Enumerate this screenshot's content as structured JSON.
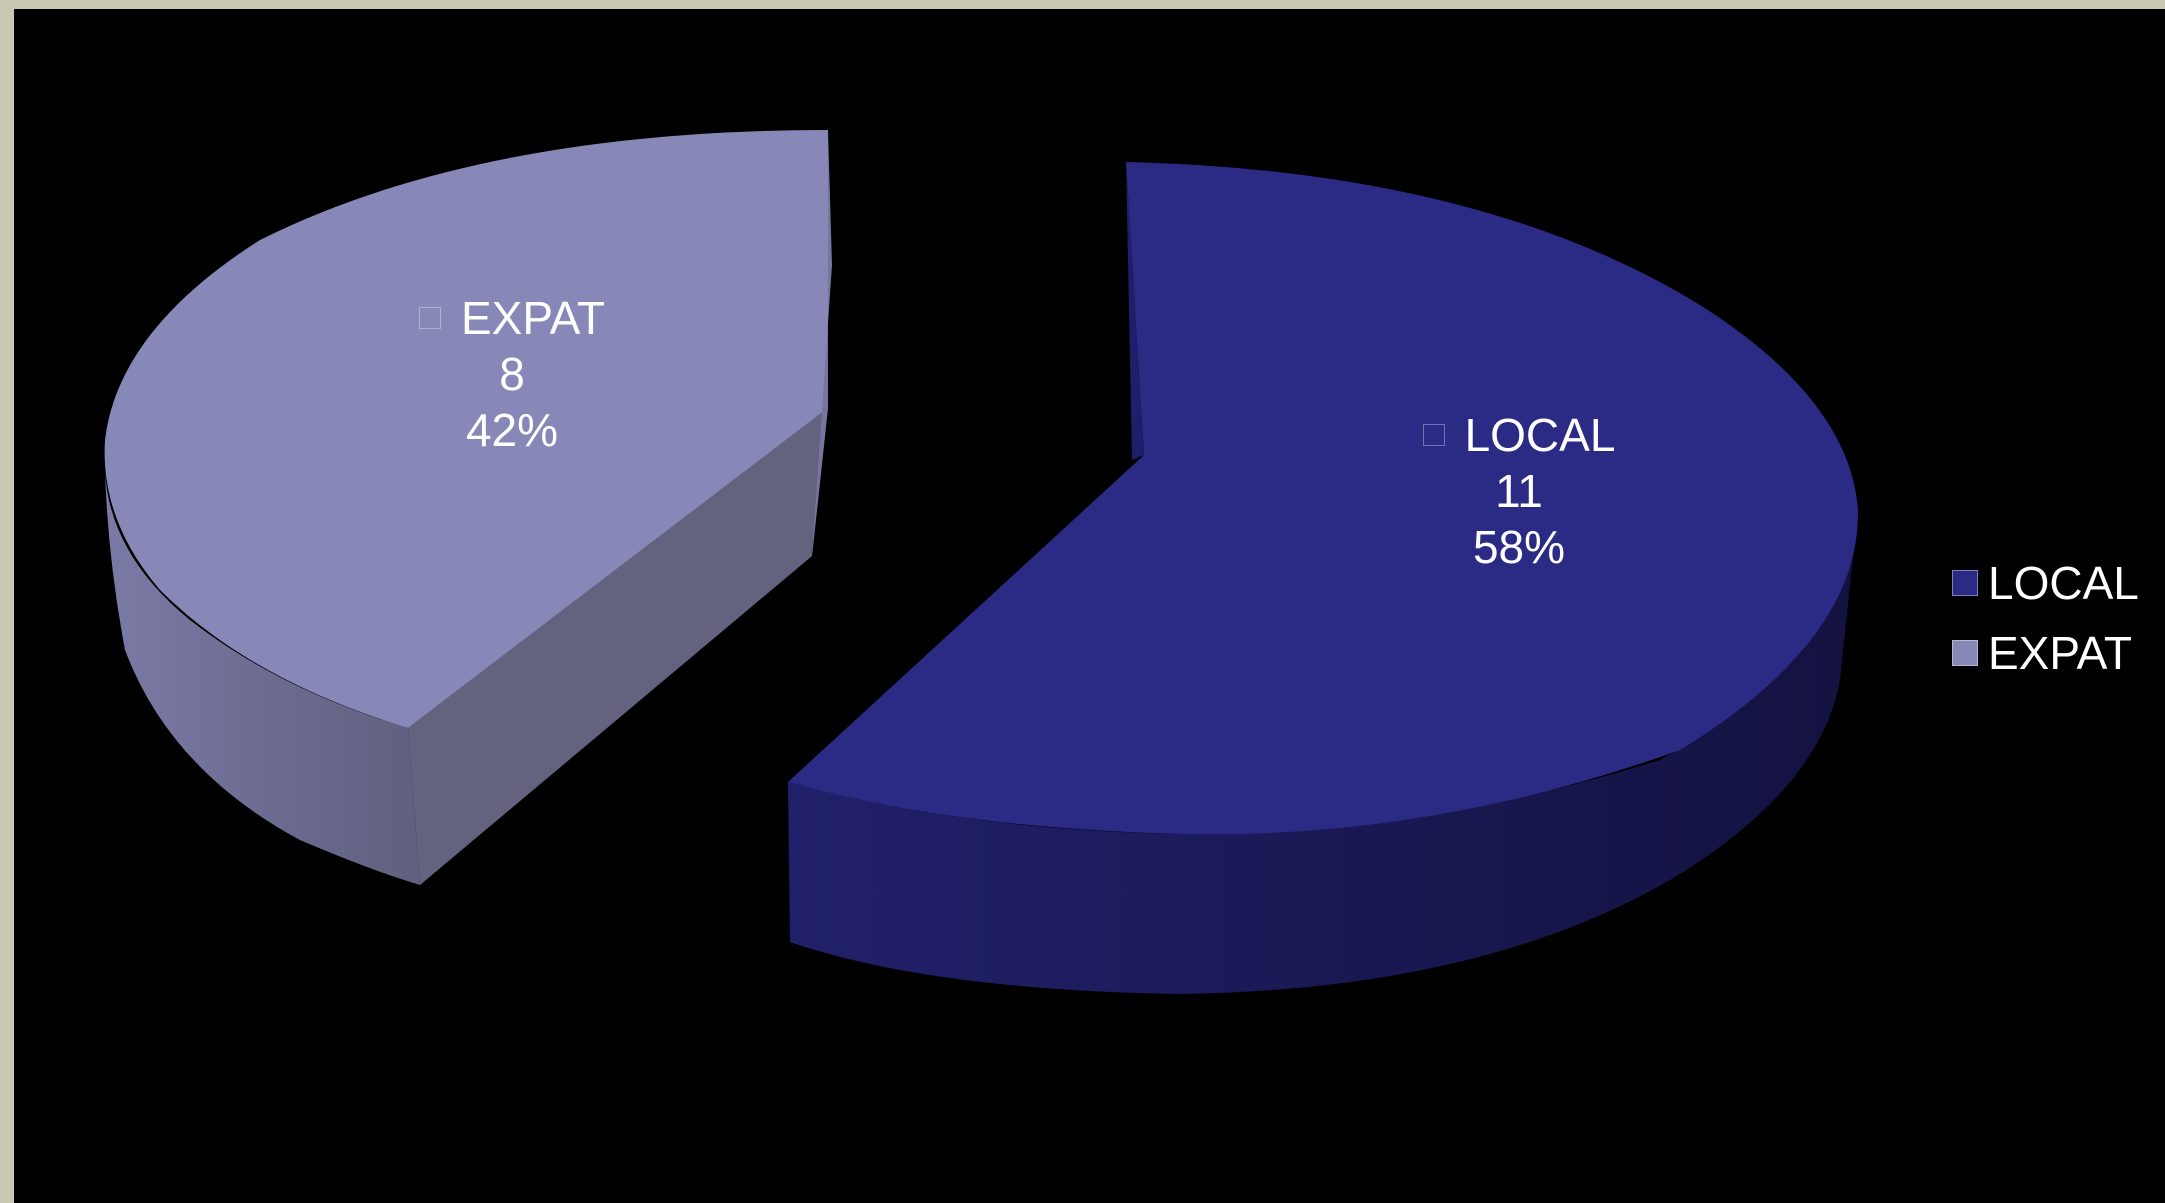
{
  "chart_data": {
    "type": "pie",
    "style": "3d-exploded",
    "categories": [
      "LOCAL",
      "EXPAT"
    ],
    "values": [
      11,
      8
    ],
    "percentages": [
      "58%",
      "42%"
    ],
    "legend_position": "right",
    "series": [
      {
        "name": "",
        "slices": [
          {
            "label": "LOCAL",
            "value": "11",
            "percent": "58%",
            "color": "#2b2a85"
          },
          {
            "label": "EXPAT",
            "value": "8",
            "percent": "42%",
            "color": "#8888b8"
          }
        ]
      }
    ]
  },
  "colors": {
    "background": "#000000",
    "frame": "#c9c9b3",
    "local_top": "#2b2a85",
    "local_side": "#1c1b5c",
    "expat_top": "#8888b8",
    "expat_side": "#63637f",
    "text": "#ffffff"
  },
  "legend": {
    "items": [
      {
        "label": "LOCAL",
        "color": "#2b2a85"
      },
      {
        "label": "EXPAT",
        "color": "#8888b8"
      }
    ]
  }
}
